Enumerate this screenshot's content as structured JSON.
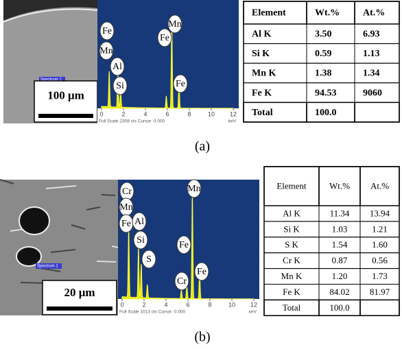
{
  "panels": [
    {
      "caption": "(a)",
      "sem": {
        "scale_bar": "100 μm",
        "spectrum_label": "Spectrum 1"
      },
      "eds": {
        "peak_labels": [
          "Fe",
          "Mn",
          "Al",
          "Si",
          "Fe",
          "Mn",
          "Fe"
        ],
        "x_ticks": [
          "0",
          "2",
          "4",
          "6",
          "8",
          "10",
          "12"
        ],
        "unit": "keV",
        "footer": "Full Scale 2308 cts Cursor: 0.000"
      },
      "table": {
        "header": [
          "Element",
          "Wt.%",
          "At.%"
        ],
        "rows": [
          [
            "Al K",
            "3.50",
            "6.93"
          ],
          [
            "Si K",
            "0.59",
            "1.13"
          ],
          [
            "Mn K",
            "1.38",
            "1.34"
          ],
          [
            "Fe K",
            "94.53",
            "9060"
          ]
        ],
        "total": [
          "Total",
          "100.0"
        ]
      }
    },
    {
      "caption": "(b)",
      "sem": {
        "scale_bar": "20 μm",
        "spectrum_label": "Spectrum 1"
      },
      "eds": {
        "peak_labels": [
          "Cr",
          "Mn",
          "Fe",
          "Al",
          "Si",
          "S",
          "Cr",
          "Fe",
          "Mn",
          "Fe"
        ],
        "x_ticks": [
          "0",
          "2",
          "4",
          "6",
          "8",
          "10",
          "12"
        ],
        "unit": "keV",
        "footer": "Full Scale 1013 cts Cursor: 0.000"
      },
      "table": {
        "header": [
          "Element",
          "Wt.%",
          "At.%"
        ],
        "rows": [
          [
            "Al K",
            "11.34",
            "13.94"
          ],
          [
            "Si K",
            "1.03",
            "1.21"
          ],
          [
            "S K",
            "1.54",
            "1.60"
          ],
          [
            "Cr K",
            "0.87",
            "0.56"
          ],
          [
            "Mn K",
            "1.20",
            "1.73"
          ],
          [
            "Fe K",
            "84.02",
            "81.97"
          ]
        ],
        "total": [
          "Total",
          "100.0"
        ]
      }
    }
  ]
}
